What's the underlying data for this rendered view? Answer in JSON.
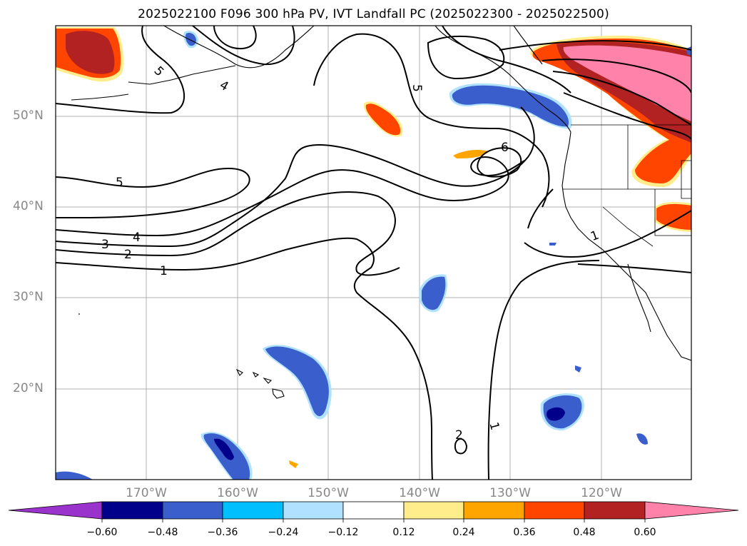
{
  "title": "2025022100 F096 300 hPa PV, IVT Landfall PC (2025022300 - 2025022500)",
  "latitude_labels": [
    "50°N",
    "40°N",
    "30°N",
    "20°N"
  ],
  "longitude_labels": [
    "170°W",
    "160°W",
    "150°W",
    "140°W",
    "130°W",
    "120°W"
  ],
  "contour_labels": [
    "5",
    "4",
    "5",
    "4",
    "3",
    "2",
    "1",
    "5",
    "6",
    "1",
    "2",
    "1"
  ],
  "colorbar": {
    "tick_labels": [
      "−0.60",
      "−0.48",
      "−0.36",
      "−0.24",
      "−0.12",
      "0.12",
      "0.24",
      "0.36",
      "0.48",
      "0.60"
    ],
    "colors": [
      "#9933cc",
      "#00008b",
      "#3a5fcd",
      "#00bfff",
      "#b0e2ff",
      "#ffffff",
      "#ffec8b",
      "#ffa500",
      "#ff4500",
      "#b22222",
      "#ff82ab"
    ]
  },
  "colors": {
    "coast": "#000000",
    "grid": "#b0b0b0"
  }
}
